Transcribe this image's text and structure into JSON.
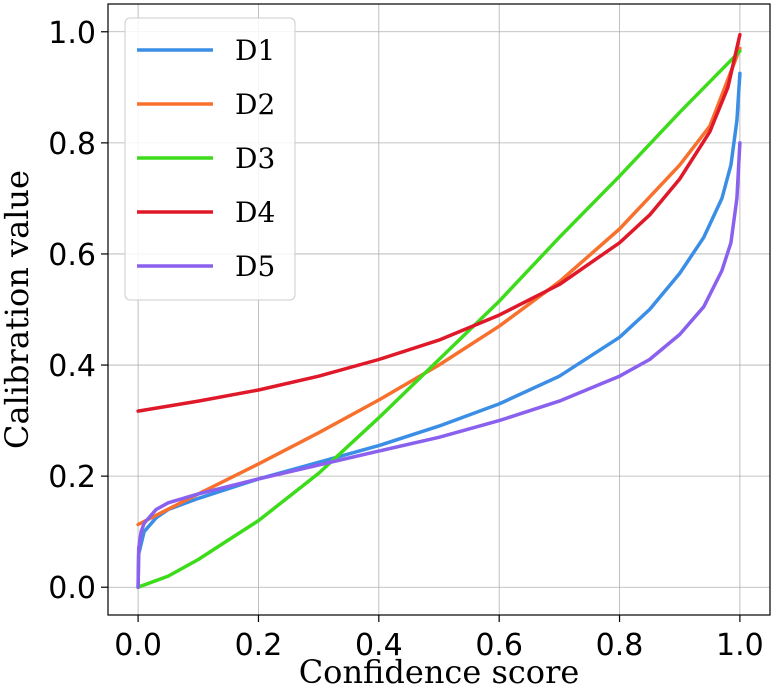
{
  "chart_data": {
    "type": "line",
    "title": "",
    "xlabel": "Confidence score",
    "ylabel": "Calibration value",
    "xlim": [
      -0.05,
      1.05
    ],
    "ylim": [
      -0.05,
      1.05
    ],
    "xticks": [
      0.0,
      0.2,
      0.4,
      0.6,
      0.8,
      1.0
    ],
    "yticks": [
      0.0,
      0.2,
      0.4,
      0.6,
      0.8,
      1.0
    ],
    "xtick_labels": [
      "0.0",
      "0.2",
      "0.4",
      "0.6",
      "0.8",
      "1.0"
    ],
    "ytick_labels": [
      "0.0",
      "0.2",
      "0.4",
      "0.6",
      "0.8",
      "1.0"
    ],
    "grid": true,
    "legend_position": "top-left",
    "series": [
      {
        "name": "D1",
        "color": "#3b8ee6",
        "x": [
          0.0,
          0.001,
          0.01,
          0.03,
          0.05,
          0.1,
          0.2,
          0.3,
          0.4,
          0.5,
          0.6,
          0.7,
          0.8,
          0.85,
          0.9,
          0.94,
          0.97,
          0.985,
          0.995,
          1.0
        ],
        "y": [
          0.0,
          0.06,
          0.1,
          0.125,
          0.14,
          0.16,
          0.195,
          0.225,
          0.255,
          0.29,
          0.33,
          0.38,
          0.45,
          0.5,
          0.565,
          0.63,
          0.7,
          0.76,
          0.84,
          0.925
        ]
      },
      {
        "name": "D2",
        "color": "#f8702d",
        "x": [
          0.0,
          0.1,
          0.2,
          0.3,
          0.4,
          0.5,
          0.6,
          0.7,
          0.8,
          0.9,
          0.95,
          1.0
        ],
        "y": [
          0.113,
          0.168,
          0.222,
          0.278,
          0.337,
          0.4,
          0.47,
          0.55,
          0.645,
          0.76,
          0.83,
          0.97
        ]
      },
      {
        "name": "D3",
        "color": "#3ddc1a",
        "x": [
          0.0,
          0.05,
          0.1,
          0.15,
          0.2,
          0.3,
          0.4,
          0.5,
          0.6,
          0.7,
          0.8,
          0.9,
          1.0
        ],
        "y": [
          0.0,
          0.02,
          0.05,
          0.085,
          0.12,
          0.205,
          0.305,
          0.41,
          0.515,
          0.63,
          0.74,
          0.855,
          0.965
        ]
      },
      {
        "name": "D4",
        "color": "#e0192a",
        "x": [
          0.0,
          0.1,
          0.2,
          0.3,
          0.4,
          0.5,
          0.6,
          0.7,
          0.8,
          0.85,
          0.9,
          0.95,
          0.98,
          1.0
        ],
        "y": [
          0.317,
          0.335,
          0.355,
          0.38,
          0.41,
          0.445,
          0.49,
          0.545,
          0.62,
          0.67,
          0.735,
          0.82,
          0.9,
          0.995
        ]
      },
      {
        "name": "D5",
        "color": "#8a60ee",
        "x": [
          0.0,
          0.001,
          0.005,
          0.01,
          0.03,
          0.05,
          0.1,
          0.2,
          0.3,
          0.4,
          0.5,
          0.6,
          0.7,
          0.8,
          0.85,
          0.9,
          0.94,
          0.97,
          0.985,
          0.995,
          1.0
        ],
        "y": [
          0.0,
          0.07,
          0.1,
          0.115,
          0.14,
          0.152,
          0.168,
          0.195,
          0.22,
          0.245,
          0.27,
          0.3,
          0.335,
          0.38,
          0.41,
          0.455,
          0.505,
          0.57,
          0.62,
          0.7,
          0.8
        ]
      }
    ]
  }
}
